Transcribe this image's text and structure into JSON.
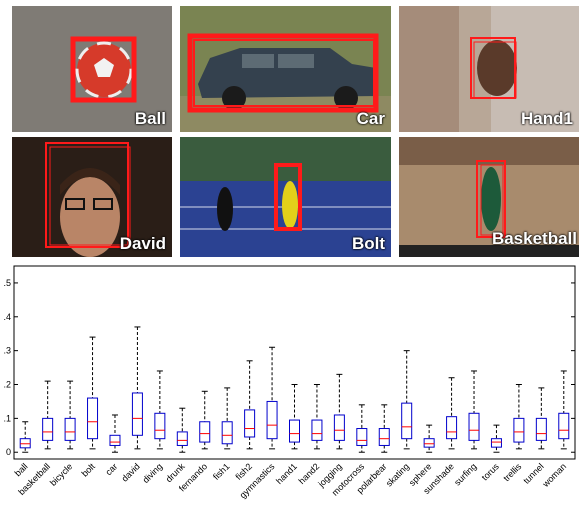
{
  "tiles": [
    {
      "id": "ball",
      "caption": "Ball",
      "bg": "#7d7a74"
    },
    {
      "id": "car",
      "caption": "Car",
      "bg": "#6f7a4a"
    },
    {
      "id": "hand1",
      "caption": "Hand1",
      "bg": "#b7a595"
    },
    {
      "id": "david",
      "caption": "David",
      "bg": "#2b1f18"
    },
    {
      "id": "bolt",
      "caption": "Bolt",
      "bg": "#2a3f8f"
    },
    {
      "id": "basketball",
      "caption": "Basketball",
      "bg": "#a98a6c"
    }
  ],
  "colors": {
    "box": "#ff1a1a",
    "median": "#ff0000",
    "whisker": "#0000cc",
    "axis": "#000000"
  },
  "chart_data": {
    "type": "box",
    "title": "",
    "xlabel": "",
    "ylabel": "",
    "ylim": [
      -0.02,
      0.55
    ],
    "yticks": [
      0,
      0.1,
      0.2,
      0.3,
      0.4,
      0.5
    ],
    "ytick_labels": [
      "0",
      ".1",
      ".2",
      ".3",
      ".4",
      ".5"
    ],
    "categories": [
      "ball",
      "basketball",
      "bicycle",
      "bolt",
      "car",
      "david",
      "diving",
      "drunk",
      "fernando",
      "fish1",
      "fish2",
      "gymnastics",
      "hand1",
      "hand2",
      "jogging",
      "motocross",
      "polarbear",
      "skating",
      "sphere",
      "sunshade",
      "surfing",
      "torus",
      "trellis",
      "tunnel",
      "woman"
    ],
    "series": [
      {
        "values": [
          {
            "min": 0.0,
            "q1": 0.013,
            "median": 0.025,
            "q3": 0.04,
            "max": 0.09
          },
          {
            "min": 0.01,
            "q1": 0.035,
            "median": 0.06,
            "q3": 0.1,
            "max": 0.21
          },
          {
            "min": 0.01,
            "q1": 0.035,
            "median": 0.06,
            "q3": 0.1,
            "max": 0.21
          },
          {
            "min": 0.01,
            "q1": 0.04,
            "median": 0.09,
            "q3": 0.16,
            "max": 0.34
          },
          {
            "min": 0.0,
            "q1": 0.02,
            "median": 0.03,
            "q3": 0.05,
            "max": 0.11
          },
          {
            "min": 0.01,
            "q1": 0.05,
            "median": 0.1,
            "q3": 0.175,
            "max": 0.37
          },
          {
            "min": 0.01,
            "q1": 0.04,
            "median": 0.065,
            "q3": 0.115,
            "max": 0.24
          },
          {
            "min": 0.0,
            "q1": 0.02,
            "median": 0.035,
            "q3": 0.06,
            "max": 0.13
          },
          {
            "min": 0.01,
            "q1": 0.03,
            "median": 0.055,
            "q3": 0.09,
            "max": 0.18
          },
          {
            "min": 0.01,
            "q1": 0.025,
            "median": 0.05,
            "q3": 0.09,
            "max": 0.19
          },
          {
            "min": 0.01,
            "q1": 0.045,
            "median": 0.07,
            "q3": 0.125,
            "max": 0.27
          },
          {
            "min": 0.01,
            "q1": 0.04,
            "median": 0.08,
            "q3": 0.15,
            "max": 0.31
          },
          {
            "min": 0.01,
            "q1": 0.03,
            "median": 0.055,
            "q3": 0.095,
            "max": 0.2
          },
          {
            "min": 0.01,
            "q1": 0.035,
            "median": 0.055,
            "q3": 0.095,
            "max": 0.2
          },
          {
            "min": 0.01,
            "q1": 0.035,
            "median": 0.065,
            "q3": 0.11,
            "max": 0.23
          },
          {
            "min": 0.0,
            "q1": 0.02,
            "median": 0.035,
            "q3": 0.07,
            "max": 0.14
          },
          {
            "min": 0.0,
            "q1": 0.02,
            "median": 0.04,
            "q3": 0.07,
            "max": 0.14
          },
          {
            "min": 0.01,
            "q1": 0.04,
            "median": 0.075,
            "q3": 0.145,
            "max": 0.3
          },
          {
            "min": 0.0,
            "q1": 0.015,
            "median": 0.025,
            "q3": 0.04,
            "max": 0.08
          },
          {
            "min": 0.01,
            "q1": 0.04,
            "median": 0.06,
            "q3": 0.105,
            "max": 0.22
          },
          {
            "min": 0.01,
            "q1": 0.035,
            "median": 0.065,
            "q3": 0.115,
            "max": 0.24
          },
          {
            "min": 0.0,
            "q1": 0.015,
            "median": 0.03,
            "q3": 0.04,
            "max": 0.08
          },
          {
            "min": 0.01,
            "q1": 0.03,
            "median": 0.06,
            "q3": 0.1,
            "max": 0.2
          },
          {
            "min": 0.01,
            "q1": 0.035,
            "median": 0.055,
            "q3": 0.1,
            "max": 0.19
          },
          {
            "min": 0.01,
            "q1": 0.04,
            "median": 0.065,
            "q3": 0.115,
            "max": 0.24
          }
        ]
      }
    ],
    "grid": false,
    "legend": "none"
  }
}
